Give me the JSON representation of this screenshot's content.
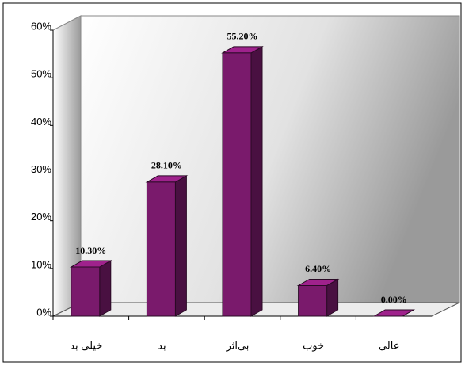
{
  "chart_data": {
    "type": "bar3d",
    "categories": [
      "خیلی بد",
      "بد",
      "بی‌اثر",
      "خوب",
      "عالی"
    ],
    "values": [
      10.3,
      28.1,
      55.2,
      6.4,
      0
    ],
    "value_labels": [
      "10.30%",
      "28.10%",
      "55.20%",
      "6.40%",
      "0.00%"
    ],
    "color": "#7a1a6c",
    "ylim": [
      0,
      60
    ],
    "yticks": [
      {
        "value": 0,
        "label": "0%"
      },
      {
        "value": 10,
        "label": "10%"
      },
      {
        "value": 20,
        "label": "20%"
      },
      {
        "value": 30,
        "label": "30%"
      },
      {
        "value": 40,
        "label": "40%"
      },
      {
        "value": 50,
        "label": "50%"
      },
      {
        "value": 60,
        "label": "60%"
      }
    ],
    "grid": false
  }
}
